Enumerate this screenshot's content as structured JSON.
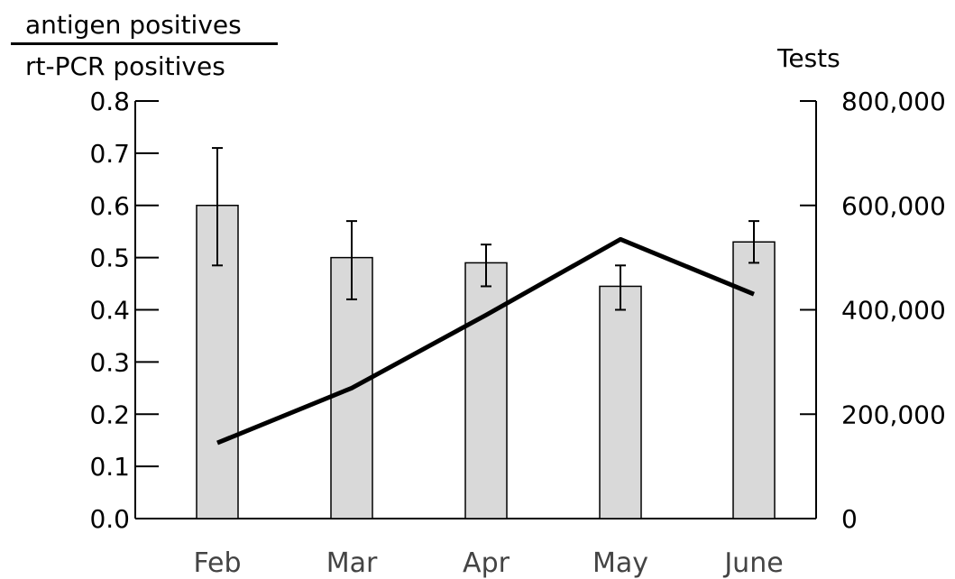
{
  "chart_data": {
    "type": "bar",
    "categories": [
      "Feb",
      "Mar",
      "Apr",
      "May",
      "June"
    ],
    "left_axis": {
      "label_numerator": "antigen positives",
      "label_denominator": "rt-PCR positives",
      "ylim": [
        0,
        0.8
      ],
      "ticks": [
        "0.0",
        "0.1",
        "0.2",
        "0.3",
        "0.4",
        "0.5",
        "0.6",
        "0.7",
        "0.8"
      ]
    },
    "right_axis": {
      "label": "Tests",
      "ylim": [
        0,
        800000
      ],
      "ticks": [
        "0",
        "200,000",
        "400,000",
        "600,000",
        "800,000"
      ]
    },
    "series": [
      {
        "type": "bar",
        "axis": "left",
        "values": [
          0.6,
          0.5,
          0.49,
          0.445,
          0.53
        ],
        "error_low": [
          0.485,
          0.42,
          0.445,
          0.4,
          0.49
        ],
        "error_high": [
          0.71,
          0.57,
          0.525,
          0.485,
          0.57
        ],
        "color": "#d9d9d9"
      },
      {
        "type": "line",
        "axis": "right",
        "values": [
          145000,
          250000,
          390000,
          535000,
          430000
        ],
        "color": "#000000"
      }
    ],
    "grid": false
  }
}
